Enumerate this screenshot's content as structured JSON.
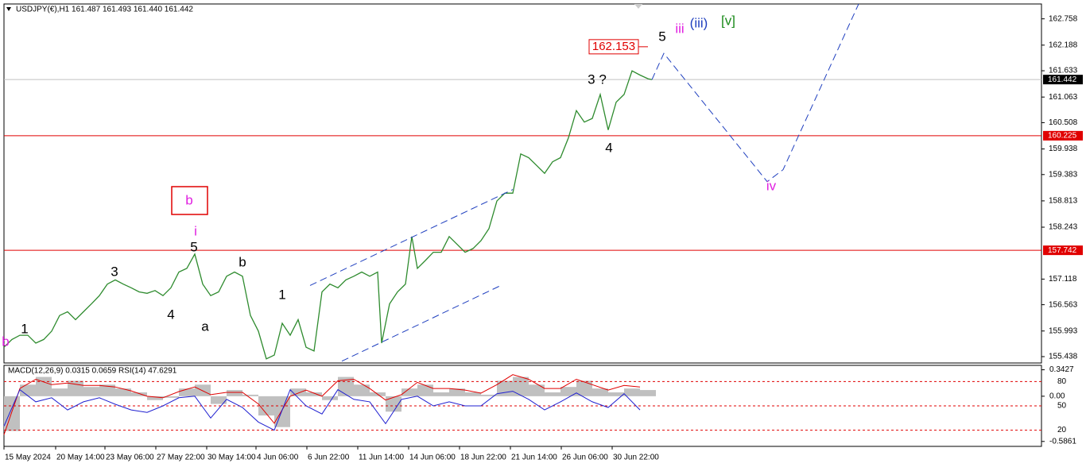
{
  "chart_data": {
    "type": "line",
    "title": "USDJPY(€),H1  161.487 161.493 161.440 161.442",
    "xlim": [
      0,
      1305
    ],
    "ylim": [
      155.3,
      163.08
    ],
    "yticks": [
      162.758,
      162.188,
      161.633,
      161.063,
      160.508,
      159.938,
      159.383,
      158.813,
      158.243,
      157.118,
      156.563,
      155.993,
      155.438
    ],
    "xticks": [
      {
        "value": 0,
        "label": "15 May 2024"
      },
      {
        "value": 65,
        "label": "20 May 14:00"
      },
      {
        "value": 127,
        "label": "23 May 06:00"
      },
      {
        "value": 191,
        "label": "27 May 22:00"
      },
      {
        "value": 255,
        "label": "30 May 14:00"
      },
      {
        "value": 317,
        "label": "4 Jun 06:00"
      },
      {
        "value": 381,
        "label": "6 Jun 22:00"
      },
      {
        "value": 445,
        "label": "11 Jun 14:00"
      },
      {
        "value": 509,
        "label": "14 Jun 06:00"
      },
      {
        "value": 573,
        "label": "18 Jun 22:00"
      },
      {
        "value": 637,
        "label": "21 Jun 14:00"
      },
      {
        "value": 701,
        "label": "26 Jun 06:00"
      },
      {
        "value": 765,
        "label": "30 Jun 22:00"
      }
    ],
    "series": [
      {
        "name": "USDJPY",
        "color": "#2e8b2e",
        "x": [
          0,
          10,
          20,
          30,
          40,
          50,
          60,
          70,
          80,
          90,
          100,
          110,
          120,
          130,
          140,
          150,
          160,
          170,
          180,
          190,
          200,
          210,
          220,
          230,
          240,
          250,
          260,
          270,
          280,
          290,
          300,
          310,
          320,
          330,
          340,
          350,
          360,
          370,
          380,
          390,
          400,
          410,
          420,
          430,
          440,
          450,
          460,
          470,
          475,
          485,
          495,
          505,
          513,
          520,
          530,
          540,
          550,
          560,
          570,
          580,
          590,
          600,
          610,
          620,
          630,
          640,
          650,
          660,
          670,
          680,
          690,
          700,
          710,
          720,
          730,
          740,
          750,
          760,
          770,
          780,
          790,
          800,
          810,
          815
        ],
        "values": [
          155.64,
          155.81,
          155.9,
          155.9,
          155.73,
          155.81,
          155.99,
          156.33,
          156.41,
          156.24,
          156.41,
          156.58,
          156.76,
          157.01,
          157.1,
          157.01,
          156.93,
          156.84,
          156.81,
          156.87,
          156.76,
          156.93,
          157.27,
          157.35,
          157.66,
          157.01,
          156.76,
          156.84,
          157.18,
          157.27,
          157.18,
          156.33,
          155.99,
          155.39,
          155.47,
          156.16,
          155.9,
          156.24,
          155.64,
          155.56,
          156.84,
          157.01,
          156.93,
          157.1,
          157.18,
          157.27,
          157.18,
          157.27,
          155.73,
          156.58,
          156.84,
          157.01,
          158.04,
          157.35,
          157.52,
          157.7,
          157.7,
          158.04,
          157.87,
          157.7,
          157.78,
          157.95,
          158.21,
          158.81,
          158.98,
          158.98,
          159.83,
          159.75,
          159.58,
          159.41,
          159.66,
          159.75,
          160.18,
          160.77,
          160.52,
          160.6,
          161.12,
          160.35,
          160.95,
          161.12,
          161.63,
          161.54,
          161.46,
          161.44
        ]
      },
      {
        "name": "projection",
        "color": "#1f3fbf",
        "dashed": true,
        "x": [
          815,
          830,
          960,
          980,
          1075
        ],
        "values": [
          161.44,
          162.01,
          159.23,
          159.49,
          163.08
        ]
      },
      {
        "name": "channel-upper",
        "color": "#1f3fbf",
        "dashed": true,
        "x": [
          385,
          640
        ],
        "values": [
          156.98,
          159.06
        ]
      },
      {
        "name": "channel-lower",
        "color": "#1f3fbf",
        "dashed": true,
        "x": [
          425,
          625
        ],
        "values": [
          155.34,
          156.98
        ]
      }
    ],
    "hlines": [
      {
        "value": 160.225,
        "color": "#e00000"
      },
      {
        "value": 157.742,
        "color": "#e00000"
      }
    ],
    "current_price": 161.442,
    "target": 162.153,
    "annotations": [
      {
        "text": "b",
        "color": "#e020e0"
      },
      {
        "text": "1",
        "color": "#000"
      },
      {
        "text": "3",
        "color": "#000"
      },
      {
        "text": "4",
        "color": "#000"
      },
      {
        "text": "5",
        "color": "#000"
      },
      {
        "text": "i",
        "color": "#e020e0"
      },
      {
        "text": "b",
        "color": "#e020e0"
      },
      {
        "text": "b",
        "color": "#000"
      },
      {
        "text": "a",
        "color": "#000"
      },
      {
        "text": "1",
        "color": "#000"
      },
      {
        "text": "3 ?",
        "color": "#000"
      },
      {
        "text": "4",
        "color": "#000"
      },
      {
        "text": "5",
        "color": "#000"
      },
      {
        "text": "iii",
        "color": "#e020e0"
      },
      {
        "text": "(iii)",
        "color": "#1f3fbf"
      },
      {
        "text": "[v]",
        "color": "#1a8a1a"
      },
      {
        "text": "iv",
        "color": "#e020e0"
      }
    ],
    "indicator": {
      "title": "MACD(12,26,9) 0.0315 0.0659 RSI(14) 47.6291",
      "macd_ylim": [
        -0.65,
        0.4
      ],
      "macd_ticks": [
        0.3427,
        {
          "value": 0,
          "label": "0.00"
        },
        -0.5861
      ],
      "rsi_ylim": [
        0,
        100
      ],
      "rsi_ticks": [
        80,
        50,
        20
      ],
      "x": [
        0,
        20,
        40,
        60,
        80,
        100,
        120,
        140,
        160,
        180,
        200,
        220,
        240,
        260,
        280,
        300,
        320,
        340,
        360,
        380,
        400,
        420,
        440,
        460,
        480,
        500,
        520,
        540,
        560,
        580,
        600,
        620,
        640,
        660,
        680,
        700,
        720,
        740,
        760,
        780,
        800
      ],
      "histogram": {
        "name": "MACD",
        "color": "#c0c0c0",
        "values": [
          -0.45,
          0.15,
          0.25,
          0.1,
          0.2,
          0.12,
          0.15,
          0.1,
          0.05,
          -0.05,
          -0.02,
          0.1,
          0.15,
          -0.1,
          0.08,
          0.02,
          -0.25,
          -0.4,
          0.1,
          0.05,
          -0.05,
          0.25,
          0.15,
          0.05,
          -0.2,
          0.1,
          0.15,
          0.05,
          0.1,
          0.05,
          0.02,
          0.2,
          0.25,
          0.15,
          0.05,
          0.12,
          0.2,
          0.1,
          0.05,
          0.1,
          0.08
        ]
      },
      "signal": {
        "name": "Signal",
        "color": "#e00000",
        "values": [
          -0.5,
          0.1,
          0.22,
          0.15,
          0.17,
          0.14,
          0.14,
          0.12,
          0.07,
          0.0,
          -0.02,
          0.06,
          0.12,
          0.02,
          0.05,
          0.05,
          -0.1,
          -0.35,
          0.0,
          0.08,
          0.0,
          0.2,
          0.22,
          0.1,
          -0.05,
          0.02,
          0.18,
          0.1,
          0.1,
          0.08,
          0.04,
          0.15,
          0.28,
          0.22,
          0.1,
          0.1,
          0.22,
          0.15,
          0.08,
          0.14,
          0.12
        ]
      },
      "rsi": {
        "name": "RSI",
        "color": "#1f1fd0",
        "values": [
          25,
          70,
          55,
          60,
          45,
          55,
          60,
          52,
          45,
          42,
          50,
          60,
          62,
          35,
          58,
          48,
          30,
          20,
          70,
          50,
          40,
          70,
          58,
          55,
          28,
          58,
          62,
          50,
          55,
          50,
          50,
          65,
          68,
          58,
          45,
          55,
          66,
          55,
          48,
          65,
          45
        ]
      }
    }
  }
}
